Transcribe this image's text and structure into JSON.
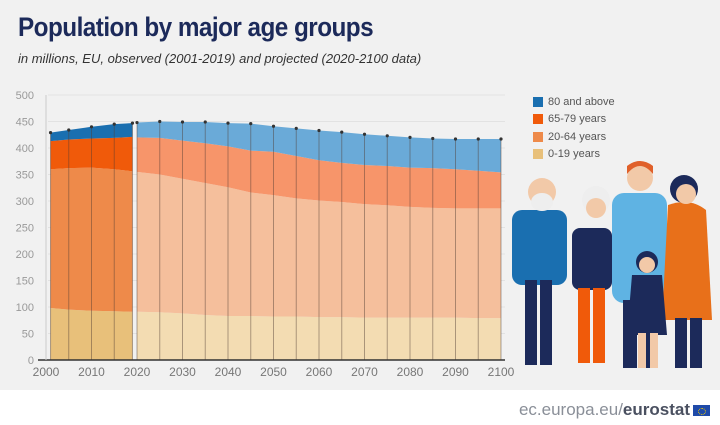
{
  "title": "Population by major age groups",
  "subtitle": "in millions, EU, observed (2001-2019) and projected (2020-2100 data)",
  "footer": {
    "site": "ec.europa.eu/",
    "brand": "eurostat"
  },
  "chart_data": {
    "type": "area",
    "stacked": true,
    "title": "Population by major age groups",
    "subtitle": "in millions, EU, observed (2001-2019) and projected (2020-2100 data)",
    "ylim": [
      0,
      500
    ],
    "yticks": [
      0,
      50,
      100,
      150,
      200,
      250,
      300,
      350,
      400,
      450,
      500
    ],
    "xlim": [
      2000,
      2100
    ],
    "xticks": [
      2000,
      2010,
      2020,
      2030,
      2040,
      2050,
      2060,
      2070,
      2080,
      2090,
      2100
    ],
    "legend_position": "right",
    "x": [
      2001,
      2005,
      2010,
      2015,
      2019,
      2020,
      2025,
      2030,
      2035,
      2040,
      2045,
      2050,
      2055,
      2060,
      2065,
      2070,
      2075,
      2080,
      2085,
      2090,
      2095,
      2100
    ],
    "observed_range": [
      2001,
      2019
    ],
    "projected_range": [
      2020,
      2100
    ],
    "series": [
      {
        "name": "0-19 years",
        "color": "#e8c07a",
        "projected_color": "#f3dcb2",
        "values": [
          98,
          95,
          93,
          92,
          91,
          91,
          90,
          88,
          85,
          83,
          83,
          82,
          82,
          81,
          81,
          80,
          80,
          80,
          80,
          80,
          79,
          79
        ]
      },
      {
        "name": "20-64 years",
        "color": "#ee8a4a",
        "projected_color": "#f5bf9c",
        "values": [
          262,
          267,
          270,
          268,
          265,
          264,
          260,
          254,
          249,
          243,
          233,
          229,
          223,
          220,
          217,
          214,
          212,
          209,
          207,
          206,
          207,
          207
        ]
      },
      {
        "name": "65-79 years",
        "color": "#f05a0a",
        "projected_color": "#f7956a",
        "values": [
          53,
          54,
          55,
          59,
          65,
          65,
          69,
          72,
          75,
          77,
          79,
          82,
          80,
          76,
          74,
          74,
          74,
          74,
          75,
          74,
          71,
          68
        ]
      },
      {
        "name": "80 and above",
        "color": "#1a6fb0",
        "projected_color": "#6aaad8",
        "values": [
          16,
          18,
          22,
          26,
          26,
          28,
          31,
          35,
          40,
          44,
          51,
          48,
          52,
          56,
          58,
          58,
          57,
          57,
          56,
          57,
          60,
          63
        ]
      }
    ]
  }
}
